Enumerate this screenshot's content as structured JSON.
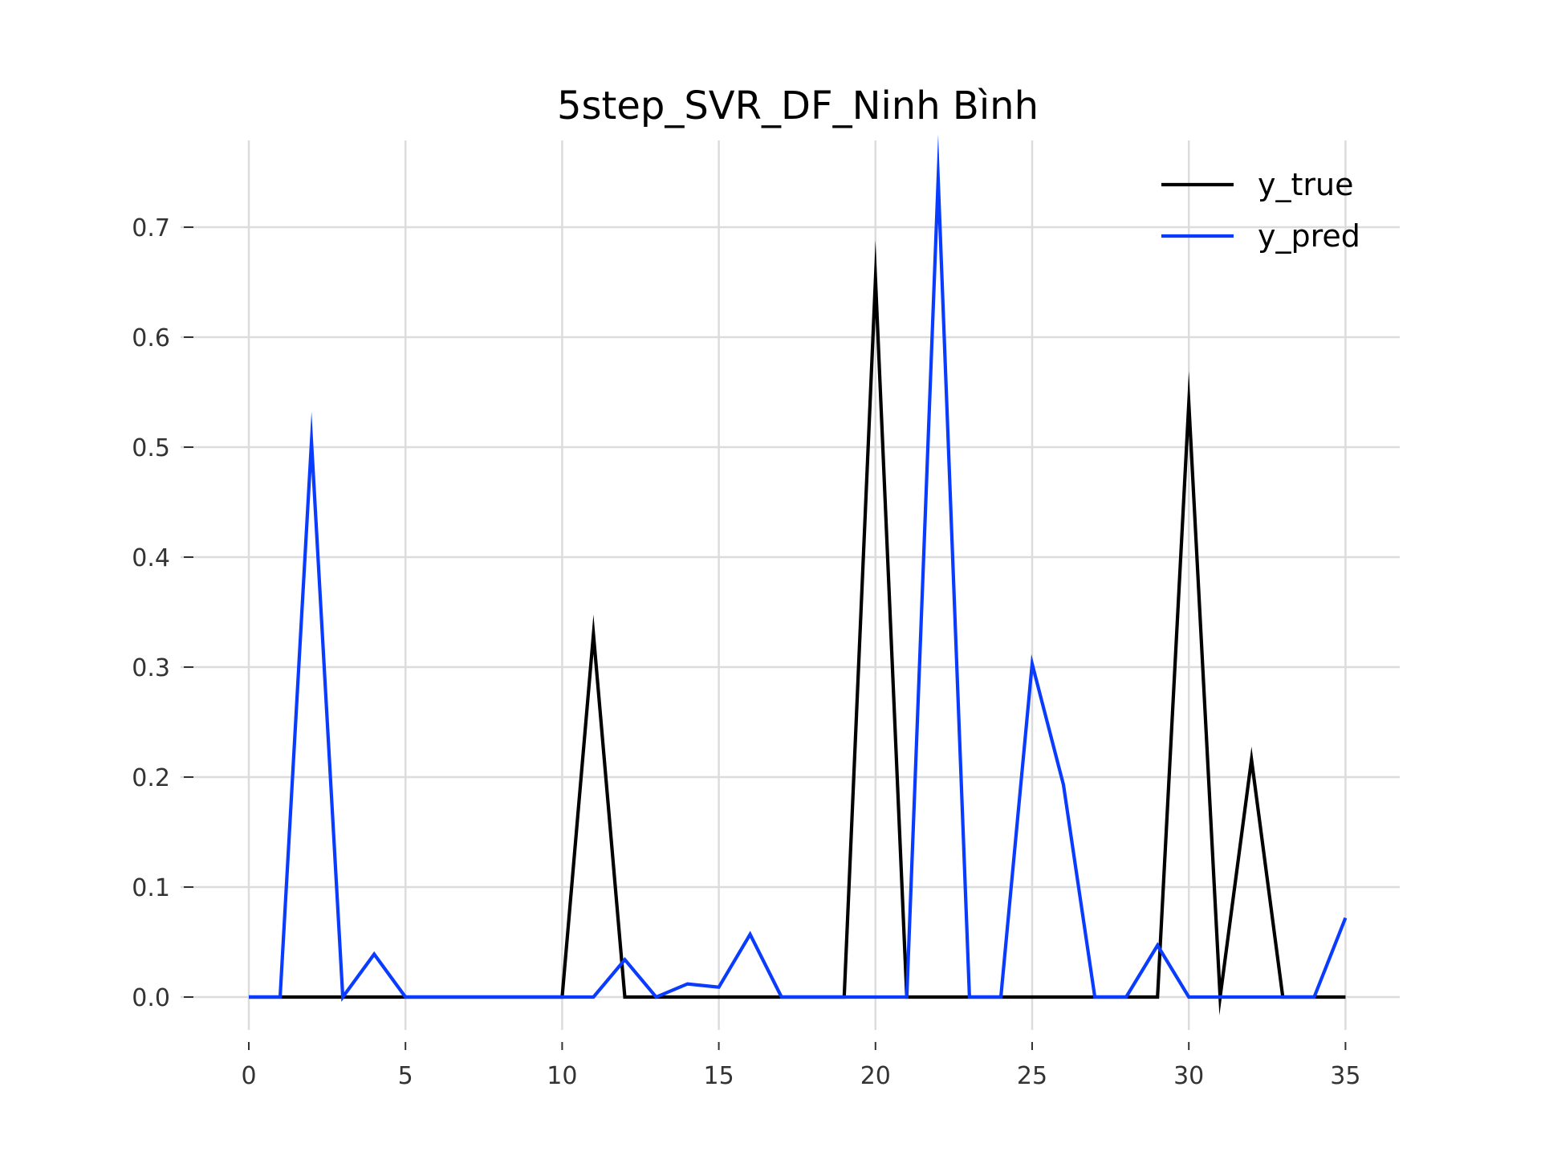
{
  "chart_data": {
    "type": "line",
    "title": "5step_SVR_DF_Ninh Bình",
    "xlabel": "",
    "ylabel": "",
    "xlim": [
      0,
      35
    ],
    "ylim": [
      0,
      0.7
    ],
    "xticks": [
      0,
      5,
      10,
      15,
      20,
      25,
      30,
      35
    ],
    "yticks": [
      "0.0",
      "0.1",
      "0.2",
      "0.3",
      "0.4",
      "0.5",
      "0.6",
      "0.7"
    ],
    "grid": true,
    "legend_position": "top-right",
    "x": [
      0,
      1,
      2,
      3,
      4,
      5,
      6,
      7,
      8,
      9,
      10,
      11,
      12,
      13,
      14,
      15,
      16,
      17,
      18,
      19,
      20,
      21,
      22,
      23,
      24,
      25,
      26,
      27,
      28,
      29,
      30,
      31,
      32,
      33,
      34,
      35
    ],
    "series": [
      {
        "name": "y_true",
        "color": "#000000",
        "values": [
          0,
          0,
          0,
          0,
          0,
          0,
          0,
          0,
          0,
          0,
          0,
          0.33,
          0,
          0,
          0,
          0,
          0,
          0,
          0,
          0,
          0.653,
          0,
          0,
          0,
          0,
          0,
          0,
          0,
          0,
          0,
          0.54,
          0,
          0.216,
          0,
          0,
          0
        ]
      },
      {
        "name": "y_pred",
        "color": "#0a3cff",
        "values": [
          0,
          0,
          0.505,
          0,
          0.039,
          0,
          0,
          0,
          0,
          0,
          0,
          0,
          0.034,
          0,
          0.012,
          0.009,
          0.057,
          0,
          0,
          0,
          0,
          0,
          0.744,
          0,
          0,
          0.303,
          0.193,
          0,
          0,
          0.047,
          0,
          0,
          0,
          0,
          0,
          0.072
        ]
      }
    ]
  }
}
